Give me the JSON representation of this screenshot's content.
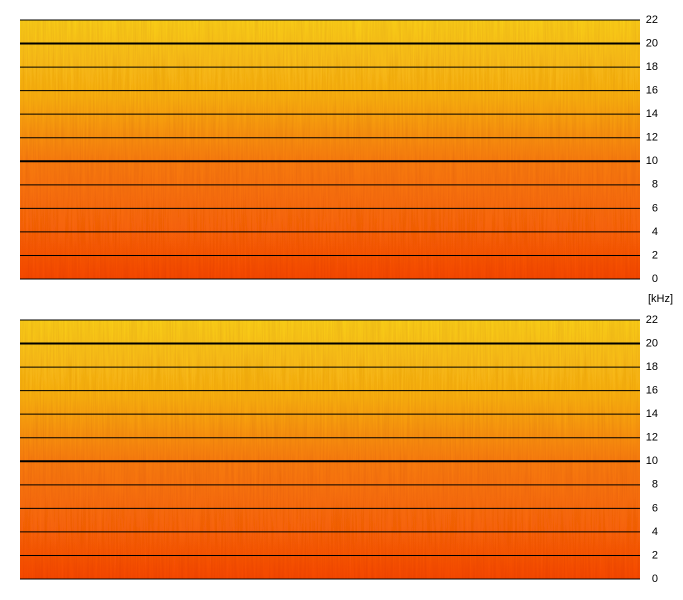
{
  "axis_label": "[kHz]",
  "chart_data": [
    {
      "type": "spectrogram",
      "ylim": [
        0,
        22
      ],
      "yticks": [
        0,
        2,
        4,
        6,
        8,
        10,
        12,
        14,
        16,
        18,
        20,
        22
      ],
      "major_gridlines": [
        10,
        20
      ],
      "grid": true
    },
    {
      "type": "spectrogram",
      "ylim": [
        0,
        22
      ],
      "yticks": [
        0,
        2,
        4,
        6,
        8,
        10,
        12,
        14,
        16,
        18,
        20,
        22
      ],
      "major_gridlines": [
        10,
        20
      ],
      "grid": true
    }
  ]
}
